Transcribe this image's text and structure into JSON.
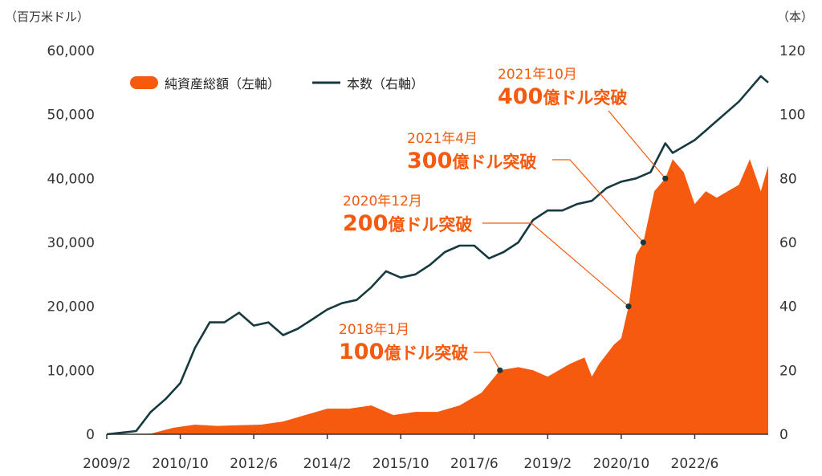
{
  "colors": {
    "area": "#f55a0f",
    "line": "#163a3f",
    "annotation": "#f55a0f",
    "text": "#333333",
    "axis": "#333333"
  },
  "chart_data": {
    "type": "area",
    "left_axis": {
      "unit": "（百万米ドル）",
      "ylim": [
        0,
        60000
      ],
      "ticks": [
        0,
        10000,
        20000,
        30000,
        40000,
        50000,
        60000
      ],
      "tick_labels": [
        "0",
        "10,000",
        "20,000",
        "30,000",
        "40,000",
        "50,000",
        "60,000"
      ]
    },
    "right_axis": {
      "unit": "（本）",
      "ylim": [
        0,
        120
      ],
      "ticks": [
        0,
        20,
        40,
        60,
        80,
        100,
        120
      ],
      "tick_labels": [
        "0",
        "20",
        "40",
        "60",
        "80",
        "100",
        "120"
      ]
    },
    "x_axis": {
      "tick_labels": [
        "2009/2",
        "2010/10",
        "2012/6",
        "2014/2",
        "2015/10",
        "2017/6",
        "2019/2",
        "2020/10",
        "2022/6"
      ],
      "range": [
        "2009/2",
        "2024/2"
      ]
    },
    "grid": false,
    "legend": {
      "placement": "top-left",
      "items": [
        {
          "label": "純資産総額（左軸）",
          "kind": "area"
        },
        {
          "label": "本数（右軸）",
          "kind": "line"
        }
      ]
    },
    "series": [
      {
        "name": "純資産総額（左軸）",
        "axis": "left",
        "kind": "area",
        "x": [
          "2009/2",
          "2010/2",
          "2010/8",
          "2011/2",
          "2011/8",
          "2012/2",
          "2012/8",
          "2013/2",
          "2013/8",
          "2014/2",
          "2014/8",
          "2015/2",
          "2015/8",
          "2016/2",
          "2016/8",
          "2017/2",
          "2017/8",
          "2018/1",
          "2018/6",
          "2018/10",
          "2019/2",
          "2019/8",
          "2019/12",
          "2020/2",
          "2020/4",
          "2020/8",
          "2020/10",
          "2020/12",
          "2021/2",
          "2021/4",
          "2021/7",
          "2021/10",
          "2021/12",
          "2022/3",
          "2022/6",
          "2022/9",
          "2022/12",
          "2023/3",
          "2023/6",
          "2023/9",
          "2023/12",
          "2024/2"
        ],
        "y": [
          0,
          100,
          1000,
          1500,
          1300,
          1400,
          1500,
          2000,
          3000,
          4000,
          4000,
          4500,
          3000,
          3500,
          3500,
          4500,
          6500,
          10000,
          10500,
          10000,
          9000,
          11000,
          12000,
          9000,
          11000,
          14000,
          15000,
          20000,
          28000,
          30000,
          38000,
          40000,
          43000,
          41000,
          36000,
          38000,
          37000,
          38000,
          39000,
          43000,
          38000,
          42000
        ]
      },
      {
        "name": "本数（右軸）",
        "axis": "right",
        "kind": "line",
        "x": [
          "2009/2",
          "2009/10",
          "2010/2",
          "2010/6",
          "2010/10",
          "2011/2",
          "2011/6",
          "2011/10",
          "2012/2",
          "2012/6",
          "2012/10",
          "2013/2",
          "2013/6",
          "2013/10",
          "2014/2",
          "2014/6",
          "2014/10",
          "2015/2",
          "2015/6",
          "2015/10",
          "2016/2",
          "2016/6",
          "2016/10",
          "2017/2",
          "2017/6",
          "2017/10",
          "2018/2",
          "2018/6",
          "2018/10",
          "2019/2",
          "2019/6",
          "2019/10",
          "2020/2",
          "2020/6",
          "2020/10",
          "2021/2",
          "2021/6",
          "2021/10",
          "2021/12",
          "2022/3",
          "2022/6",
          "2022/9",
          "2022/12",
          "2023/3",
          "2023/6",
          "2023/9",
          "2023/12",
          "2024/2"
        ],
        "y": [
          0,
          1,
          7,
          11,
          16,
          27,
          35,
          35,
          38,
          34,
          35,
          31,
          33,
          36,
          39,
          41,
          42,
          46,
          51,
          49,
          50,
          53,
          57,
          59,
          59,
          55,
          57,
          60,
          67,
          70,
          70,
          72,
          73,
          77,
          79,
          80,
          82,
          91,
          88,
          90,
          92,
          95,
          98,
          101,
          104,
          108,
          112,
          110
        ]
      }
    ],
    "annotations": [
      {
        "date": "2018年1月",
        "amount": "100",
        "suffix": "億ドル突破",
        "x": "2018/1",
        "y": 10000
      },
      {
        "date": "2020年12月",
        "amount": "200",
        "suffix": "億ドル突破",
        "x": "2020/12",
        "y": 20000
      },
      {
        "date": "2021年4月",
        "amount": "300",
        "suffix": "億ドル突破",
        "x": "2021/4",
        "y": 30000
      },
      {
        "date": "2021年10月",
        "amount": "400",
        "suffix": "億ドル突破",
        "x": "2021/10",
        "y": 40000
      }
    ]
  }
}
